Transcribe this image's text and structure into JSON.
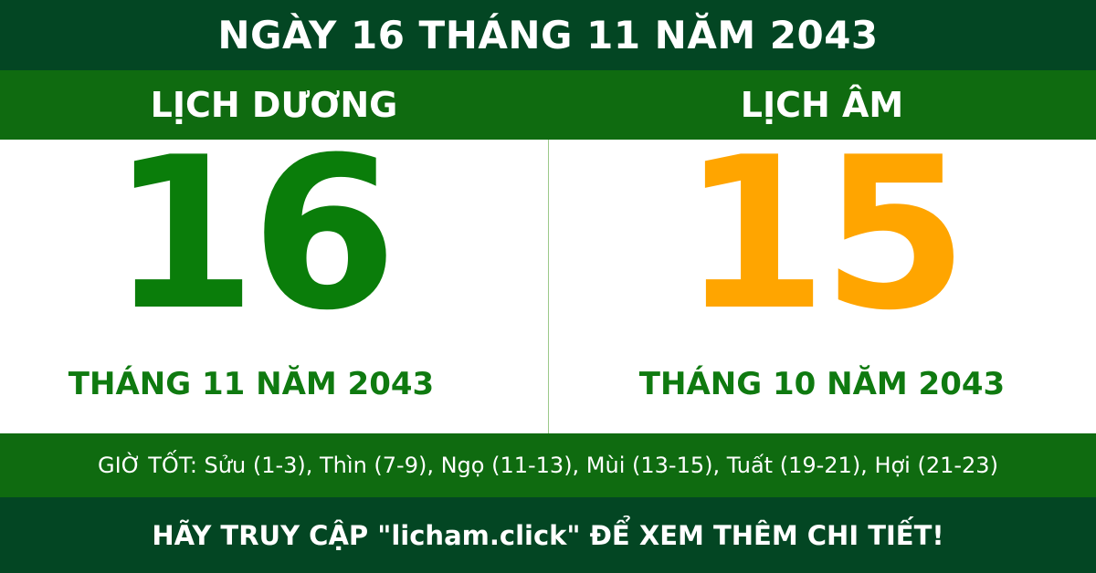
{
  "header": {
    "title": "NGÀY 16 THÁNG 11 NĂM 2043"
  },
  "solar": {
    "label": "LỊCH DƯƠNG",
    "day": "16",
    "month_year": "THÁNG 11 NĂM 2043",
    "color": "#0a7d0a"
  },
  "lunar": {
    "label": "LỊCH ÂM",
    "day": "15",
    "month_year": "THÁNG 10 NĂM 2043",
    "color": "#ffa500"
  },
  "good_hours": "GIỜ TỐT: Sửu (1-3), Thìn (7-9), Ngọ (11-13), Mùi (13-15), Tuất (19-21), Hợi (21-23)",
  "footer": {
    "text": "HÃY TRUY CẬP \"licham.click\" ĐỂ XEM THÊM CHI TIẾT!"
  },
  "colors": {
    "dark_green": "#034623",
    "green": "#0f6b10"
  }
}
